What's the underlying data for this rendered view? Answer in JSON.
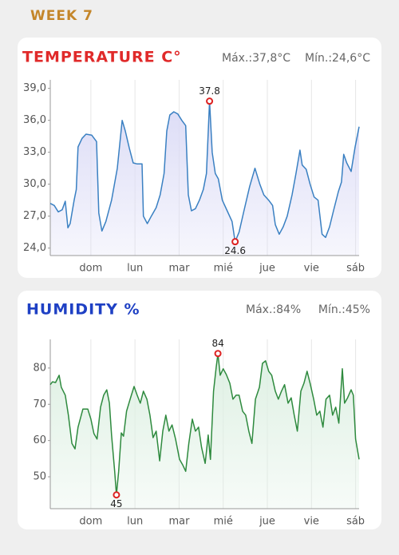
{
  "header": {
    "title": "WEEK 7"
  },
  "chart_data": [
    {
      "type": "line",
      "title": "TEMPERATURE C°",
      "max_label": "Máx.:37,8°C",
      "min_label": "Mín.:24,6°C",
      "color": "#3a80c2",
      "fill": "#dcdcf6",
      "grid": "x",
      "xlim": [
        0.08,
        7.08
      ],
      "ylim": [
        23.3,
        39.8
      ],
      "xticks": [
        {
          "value": 1,
          "label": "dom"
        },
        {
          "value": 2,
          "label": "lun"
        },
        {
          "value": 3,
          "label": "mar"
        },
        {
          "value": 4,
          "label": "mié"
        },
        {
          "value": 5,
          "label": "jue"
        },
        {
          "value": 6,
          "label": "vie"
        },
        {
          "value": 7,
          "label": "sáb"
        }
      ],
      "yticks": [
        {
          "value": 24,
          "label": "24,0"
        },
        {
          "value": 27,
          "label": "27,0"
        },
        {
          "value": 30,
          "label": "30,0"
        },
        {
          "value": 33,
          "label": "33,0"
        },
        {
          "value": 36,
          "label": "36,0"
        },
        {
          "value": 39,
          "label": "39,0"
        }
      ],
      "x": [
        0.08,
        0.17,
        0.26,
        0.35,
        0.42,
        0.48,
        0.53,
        0.62,
        0.67,
        0.71,
        0.8,
        0.89,
        1.02,
        1.13,
        1.18,
        1.25,
        1.34,
        1.47,
        1.6,
        1.71,
        1.78,
        1.87,
        1.96,
        2.05,
        2.16,
        2.19,
        2.28,
        2.37,
        2.48,
        2.57,
        2.66,
        2.72,
        2.79,
        2.88,
        2.97,
        3.06,
        3.15,
        3.21,
        3.28,
        3.37,
        3.46,
        3.55,
        3.62,
        3.69,
        3.75,
        3.82,
        3.89,
        3.98,
        4.09,
        4.2,
        4.27,
        4.36,
        4.47,
        4.6,
        4.72,
        4.83,
        4.92,
        5.03,
        5.12,
        5.18,
        5.27,
        5.36,
        5.45,
        5.56,
        5.65,
        5.74,
        5.79,
        5.88,
        5.97,
        6.06,
        6.15,
        6.24,
        6.32,
        6.41,
        6.5,
        6.61,
        6.68,
        6.73,
        6.8,
        6.9,
        6.99,
        7.08
      ],
      "values": [
        28.2,
        28.0,
        27.4,
        27.6,
        28.4,
        25.9,
        26.3,
        28.5,
        29.5,
        33.5,
        34.3,
        34.7,
        34.6,
        34.0,
        27.3,
        25.6,
        26.5,
        28.5,
        31.5,
        36.0,
        35.0,
        33.4,
        32.0,
        31.9,
        31.9,
        27.0,
        26.3,
        27.0,
        27.8,
        29.0,
        31.0,
        35.0,
        36.5,
        36.8,
        36.6,
        36.0,
        35.5,
        29.0,
        27.5,
        27.7,
        28.5,
        29.5,
        31.0,
        37.8,
        33.0,
        31.0,
        30.5,
        28.5,
        27.5,
        26.5,
        24.6,
        25.5,
        27.5,
        29.8,
        31.5,
        30.0,
        29.0,
        28.5,
        28.0,
        26.2,
        25.3,
        26.0,
        27.0,
        29.0,
        31.0,
        33.2,
        31.8,
        31.4,
        30.0,
        28.8,
        28.5,
        25.3,
        25.0,
        26.0,
        27.5,
        29.3,
        30.2,
        32.8,
        32.0,
        31.2,
        33.5,
        35.4
      ],
      "annotations": [
        {
          "x": 3.69,
          "y": 37.8,
          "position": "above"
        },
        {
          "x": 4.27,
          "y": 24.6,
          "position": "below"
        }
      ]
    },
    {
      "type": "line",
      "title": "HUMIDITY %",
      "max_label": "Máx.:84%",
      "min_label": "Mín.:45%",
      "color": "#2e8a3e",
      "fill": "#def0e3",
      "grid": "x",
      "xlim": [
        0.08,
        7.08
      ],
      "ylim": [
        41.2,
        87.9
      ],
      "xticks": [
        {
          "value": 1,
          "label": "dom"
        },
        {
          "value": 2,
          "label": "lun"
        },
        {
          "value": 3,
          "label": "mar"
        },
        {
          "value": 4,
          "label": "mié"
        },
        {
          "value": 5,
          "label": "jue"
        },
        {
          "value": 6,
          "label": "vie"
        },
        {
          "value": 7,
          "label": "sáb"
        }
      ],
      "yticks": [
        50,
        60,
        70,
        80
      ],
      "x": [
        0.08,
        0.13,
        0.2,
        0.28,
        0.33,
        0.42,
        0.49,
        0.57,
        0.64,
        0.71,
        0.82,
        0.93,
        1.0,
        1.07,
        1.14,
        1.22,
        1.29,
        1.36,
        1.42,
        1.47,
        1.54,
        1.58,
        1.63,
        1.69,
        1.74,
        1.81,
        1.9,
        1.98,
        2.05,
        2.12,
        2.19,
        2.27,
        2.34,
        2.41,
        2.48,
        2.56,
        2.63,
        2.7,
        2.77,
        2.84,
        2.92,
        3.01,
        3.08,
        3.15,
        3.22,
        3.3,
        3.37,
        3.44,
        3.51,
        3.59,
        3.66,
        3.71,
        3.78,
        3.84,
        3.88,
        3.93,
        4.0,
        4.07,
        4.15,
        4.22,
        4.29,
        4.36,
        4.44,
        4.51,
        4.58,
        4.65,
        4.73,
        4.82,
        4.89,
        4.96,
        5.03,
        5.1,
        5.18,
        5.25,
        5.32,
        5.39,
        5.47,
        5.54,
        5.61,
        5.68,
        5.76,
        5.83,
        5.9,
        5.97,
        6.05,
        6.12,
        6.19,
        6.26,
        6.33,
        6.41,
        6.48,
        6.55,
        6.62,
        6.7,
        6.75,
        6.82,
        6.9,
        6.95,
        7.0,
        7.08
      ],
      "values": [
        75.4,
        76.2,
        76,
        78,
        74.7,
        72.5,
        67,
        59.2,
        57.7,
        63.7,
        68.7,
        68.7,
        65.9,
        61.9,
        60.4,
        69.2,
        72.5,
        74,
        70.3,
        61.5,
        51.5,
        45,
        51.5,
        62.1,
        61.2,
        68.1,
        71.8,
        74.9,
        72.5,
        70.3,
        73.6,
        71.4,
        67,
        60.8,
        62.6,
        54.4,
        62.6,
        67,
        62.6,
        64.3,
        60.4,
        54.8,
        53.3,
        51.5,
        59.2,
        65.9,
        62.6,
        63.7,
        58.1,
        53.7,
        61.5,
        54.8,
        73.6,
        80.2,
        84,
        78,
        79.8,
        78.2,
        75.8,
        71.4,
        72.5,
        72.5,
        68.1,
        67,
        62.6,
        59.2,
        71.4,
        74.7,
        81.3,
        82,
        79.1,
        78,
        73.6,
        71.4,
        73.6,
        75.4,
        70.3,
        71.8,
        67,
        62.6,
        73.6,
        75.8,
        79.1,
        75.8,
        71.4,
        67,
        68.1,
        63.7,
        71.4,
        72.5,
        67,
        69.2,
        64.8,
        79.8,
        70.3,
        71.8,
        74,
        72.5,
        60.4,
        54.8
      ],
      "annotations": [
        {
          "x": 3.88,
          "y": 84,
          "position": "above"
        },
        {
          "x": 1.58,
          "y": 45,
          "position": "below"
        }
      ]
    }
  ]
}
